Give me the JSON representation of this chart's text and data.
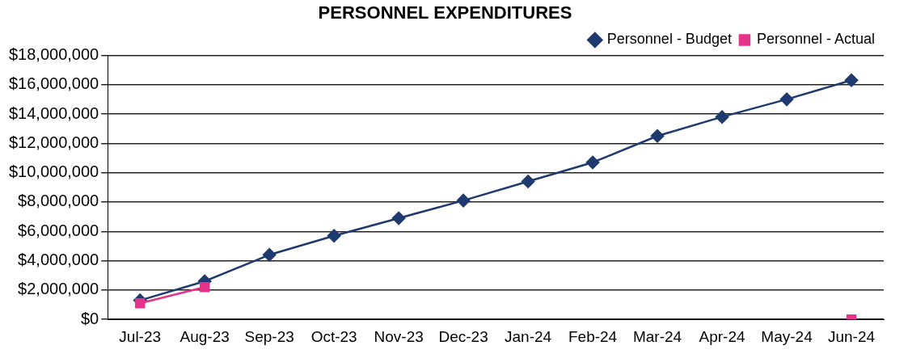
{
  "chart_data": {
    "type": "line",
    "title": "PERSONNEL EXPENDITURES",
    "categories": [
      "Jul-23",
      "Aug-23",
      "Sep-23",
      "Oct-23",
      "Nov-23",
      "Dec-23",
      "Jan-24",
      "Feb-24",
      "Mar-24",
      "Apr-24",
      "May-24",
      "Jun-24"
    ],
    "series": [
      {
        "name": "Personnel - Budget",
        "color": "#1f3a6e",
        "marker": "diamond",
        "values": [
          1300000,
          2600000,
          4400000,
          5700000,
          6900000,
          8100000,
          9400000,
          10700000,
          12500000,
          13800000,
          15000000,
          16300000
        ]
      },
      {
        "name": "Personnel - Actual",
        "color": "#e6338a",
        "marker": "square",
        "values": [
          1100000,
          2200000,
          null,
          null,
          null,
          null,
          null,
          null,
          null,
          null,
          null,
          0
        ]
      }
    ],
    "ylim": [
      0,
      18000000
    ],
    "yticks": [
      {
        "value": 0,
        "label": "$0"
      },
      {
        "value": 2000000,
        "label": "$2,000,000"
      },
      {
        "value": 4000000,
        "label": "$4,000,000"
      },
      {
        "value": 6000000,
        "label": "$6,000,000"
      },
      {
        "value": 8000000,
        "label": "$8,000,000"
      },
      {
        "value": 10000000,
        "label": "$10,000,000"
      },
      {
        "value": 12000000,
        "label": "$12,000,000"
      },
      {
        "value": 14000000,
        "label": "$14,000,000"
      },
      {
        "value": 16000000,
        "label": "$16,000,000"
      },
      {
        "value": 18000000,
        "label": "$18,000,000"
      }
    ],
    "grid": "y",
    "legend": "top right"
  }
}
